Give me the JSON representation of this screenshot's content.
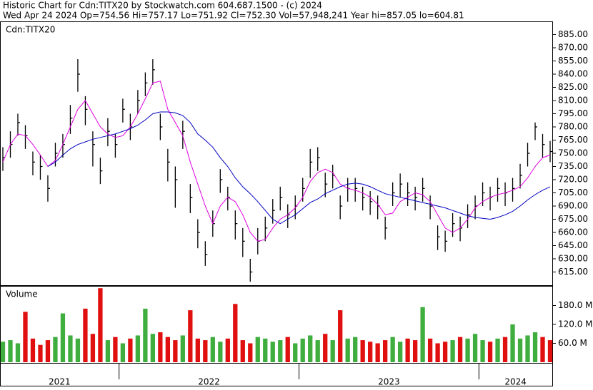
{
  "header": {
    "line1": "Historic Chart for Cdn:TITX20 by Stockwatch.com 604.687.1500 - (c) 2024",
    "line2": "Wed Apr 24 2024   Op=754.56   Hi=757.17   Lo=751.92   Cl=752.30   Vol=57,948,241   Year hi=857.05   lo=604.81"
  },
  "chart_data": [
    {
      "type": "hilo",
      "symbol_label": "Cdn:TITX20",
      "ylim": [
        600,
        900
      ],
      "yticks": [
        {
          "value": 615,
          "label": "615.00"
        },
        {
          "value": 630,
          "label": "630.00"
        },
        {
          "value": 645,
          "label": "645.00"
        },
        {
          "value": 660,
          "label": "660.00"
        },
        {
          "value": 675,
          "label": "675.00"
        },
        {
          "value": 690,
          "label": "690.00"
        },
        {
          "value": 705,
          "label": "705.00"
        },
        {
          "value": 720,
          "label": "720.00"
        },
        {
          "value": 735,
          "label": "735.00"
        },
        {
          "value": 750,
          "label": "750.00"
        },
        {
          "value": 765,
          "label": "765.00"
        },
        {
          "value": 780,
          "label": "780.00"
        },
        {
          "value": 795,
          "label": "795.00"
        },
        {
          "value": 810,
          "label": "810.00"
        },
        {
          "value": 825,
          "label": "825.00"
        },
        {
          "value": 840,
          "label": "840.00"
        },
        {
          "value": 855,
          "label": "855.00"
        },
        {
          "value": 870,
          "label": "870.00"
        },
        {
          "value": 885,
          "label": "885.00"
        }
      ],
      "categories": [
        "2021",
        null,
        null,
        null,
        null,
        null,
        null,
        null,
        null,
        null,
        null,
        null,
        null,
        null,
        null,
        null,
        "2022",
        null,
        null,
        null,
        null,
        null,
        null,
        null,
        null,
        null,
        null,
        null,
        null,
        null,
        null,
        null,
        null,
        null,
        null,
        null,
        null,
        null,
        null,
        null,
        "2023",
        null,
        null,
        null,
        null,
        null,
        null,
        null,
        null,
        null,
        null,
        null,
        null,
        null,
        null,
        null,
        null,
        null,
        null,
        null,
        null,
        null,
        null,
        null,
        "2024",
        null,
        null,
        null,
        null,
        null,
        null,
        null,
        null,
        null
      ],
      "bar_color": "#000000",
      "high": [
        757,
        775,
        795,
        782,
        752,
        748,
        725,
        762,
        772,
        805,
        857,
        815,
        775,
        745,
        790,
        772,
        812,
        795,
        822,
        842,
        857,
        795,
        755,
        735,
        787,
        715,
        675,
        650,
        685,
        732,
        712,
        685,
        665,
        630,
        665,
        678,
        698,
        712,
        692,
        702,
        722,
        755,
        757,
        728,
        737,
        702,
        722,
        722,
        712,
        707,
        702,
        678,
        717,
        727,
        717,
        712,
        722,
        702,
        668,
        662,
        682,
        678,
        692,
        702,
        717,
        712,
        722,
        717,
        722,
        738,
        762,
        785,
        772,
        764
      ],
      "low": [
        730,
        745,
        770,
        755,
        725,
        720,
        695,
        735,
        745,
        772,
        820,
        782,
        735,
        715,
        758,
        745,
        785,
        765,
        795,
        815,
        828,
        765,
        718,
        688,
        755,
        682,
        642,
        622,
        655,
        705,
        685,
        652,
        632,
        604,
        635,
        650,
        670,
        685,
        665,
        675,
        695,
        722,
        730,
        700,
        710,
        675,
        695,
        695,
        685,
        680,
        675,
        652,
        690,
        700,
        690,
        685,
        695,
        675,
        640,
        638,
        655,
        650,
        665,
        675,
        690,
        685,
        695,
        690,
        695,
        710,
        735,
        765,
        745,
        740
      ],
      "close": [
        745,
        760,
        785,
        770,
        740,
        735,
        710,
        750,
        760,
        790,
        840,
        800,
        760,
        730,
        775,
        760,
        800,
        780,
        810,
        830,
        845,
        780,
        740,
        720,
        775,
        700,
        660,
        635,
        670,
        720,
        700,
        670,
        650,
        615,
        650,
        665,
        685,
        700,
        680,
        690,
        710,
        740,
        745,
        715,
        725,
        690,
        710,
        710,
        700,
        695,
        690,
        665,
        705,
        715,
        705,
        700,
        710,
        690,
        655,
        650,
        670,
        665,
        680,
        690,
        705,
        700,
        710,
        705,
        710,
        725,
        750,
        780,
        760,
        752
      ],
      "series": [
        {
          "color": "#e000e0",
          "values": [
            740,
            760,
            772,
            770,
            760,
            748,
            735,
            742,
            760,
            780,
            800,
            810,
            795,
            780,
            772,
            768,
            770,
            780,
            795,
            812,
            830,
            832,
            800,
            785,
            770,
            740,
            715,
            690,
            670,
            690,
            700,
            695,
            680,
            660,
            650,
            652,
            665,
            675,
            680,
            688,
            700,
            718,
            728,
            732,
            728,
            715,
            710,
            708,
            705,
            700,
            692,
            680,
            682,
            695,
            700,
            705,
            703,
            695,
            680,
            665,
            660,
            665,
            675,
            688,
            695,
            700,
            703,
            705,
            708,
            712,
            722,
            735,
            745,
            748
          ]
        },
        {
          "color": "#0000c0",
          "values": [
            null,
            null,
            null,
            null,
            null,
            null,
            735,
            740,
            748,
            755,
            760,
            763,
            766,
            768,
            770,
            772,
            775,
            778,
            782,
            788,
            795,
            797,
            797,
            796,
            793,
            785,
            772,
            765,
            757,
            745,
            735,
            722,
            712,
            704,
            695,
            685,
            675,
            670,
            675,
            680,
            687,
            694,
            698,
            704,
            708,
            712,
            715,
            716,
            715,
            712,
            708,
            704,
            702,
            700,
            698,
            696,
            694,
            692,
            690,
            688,
            685,
            682,
            679,
            677,
            676,
            675,
            677,
            680,
            684,
            690,
            697,
            703,
            708,
            712
          ]
        }
      ]
    },
    {
      "type": "volume",
      "title": "Volume",
      "ylim": [
        0,
        240
      ],
      "up_color": "#3fae3f",
      "down_color": "#e01010",
      "yticks": [
        {
          "value": 60,
          "label": "60.0 M"
        },
        {
          "value": 120,
          "label": "120.0 M"
        },
        {
          "value": 180,
          "label": "180.0 M"
        }
      ],
      "values": [
        65,
        70,
        60,
        160,
        75,
        55,
        70,
        80,
        155,
        85,
        75,
        170,
        90,
        235,
        70,
        80,
        60,
        75,
        85,
        170,
        90,
        95,
        80,
        70,
        85,
        165,
        75,
        70,
        80,
        65,
        75,
        185,
        70,
        60,
        80,
        75,
        65,
        70,
        80,
        60,
        75,
        85,
        70,
        90,
        70,
        165,
        75,
        80,
        70,
        65,
        60,
        70,
        80,
        65,
        75,
        70,
        175,
        75,
        60,
        65,
        70,
        80,
        75,
        90,
        70,
        65,
        75,
        80,
        120,
        75,
        85,
        95,
        80,
        70
      ]
    }
  ]
}
